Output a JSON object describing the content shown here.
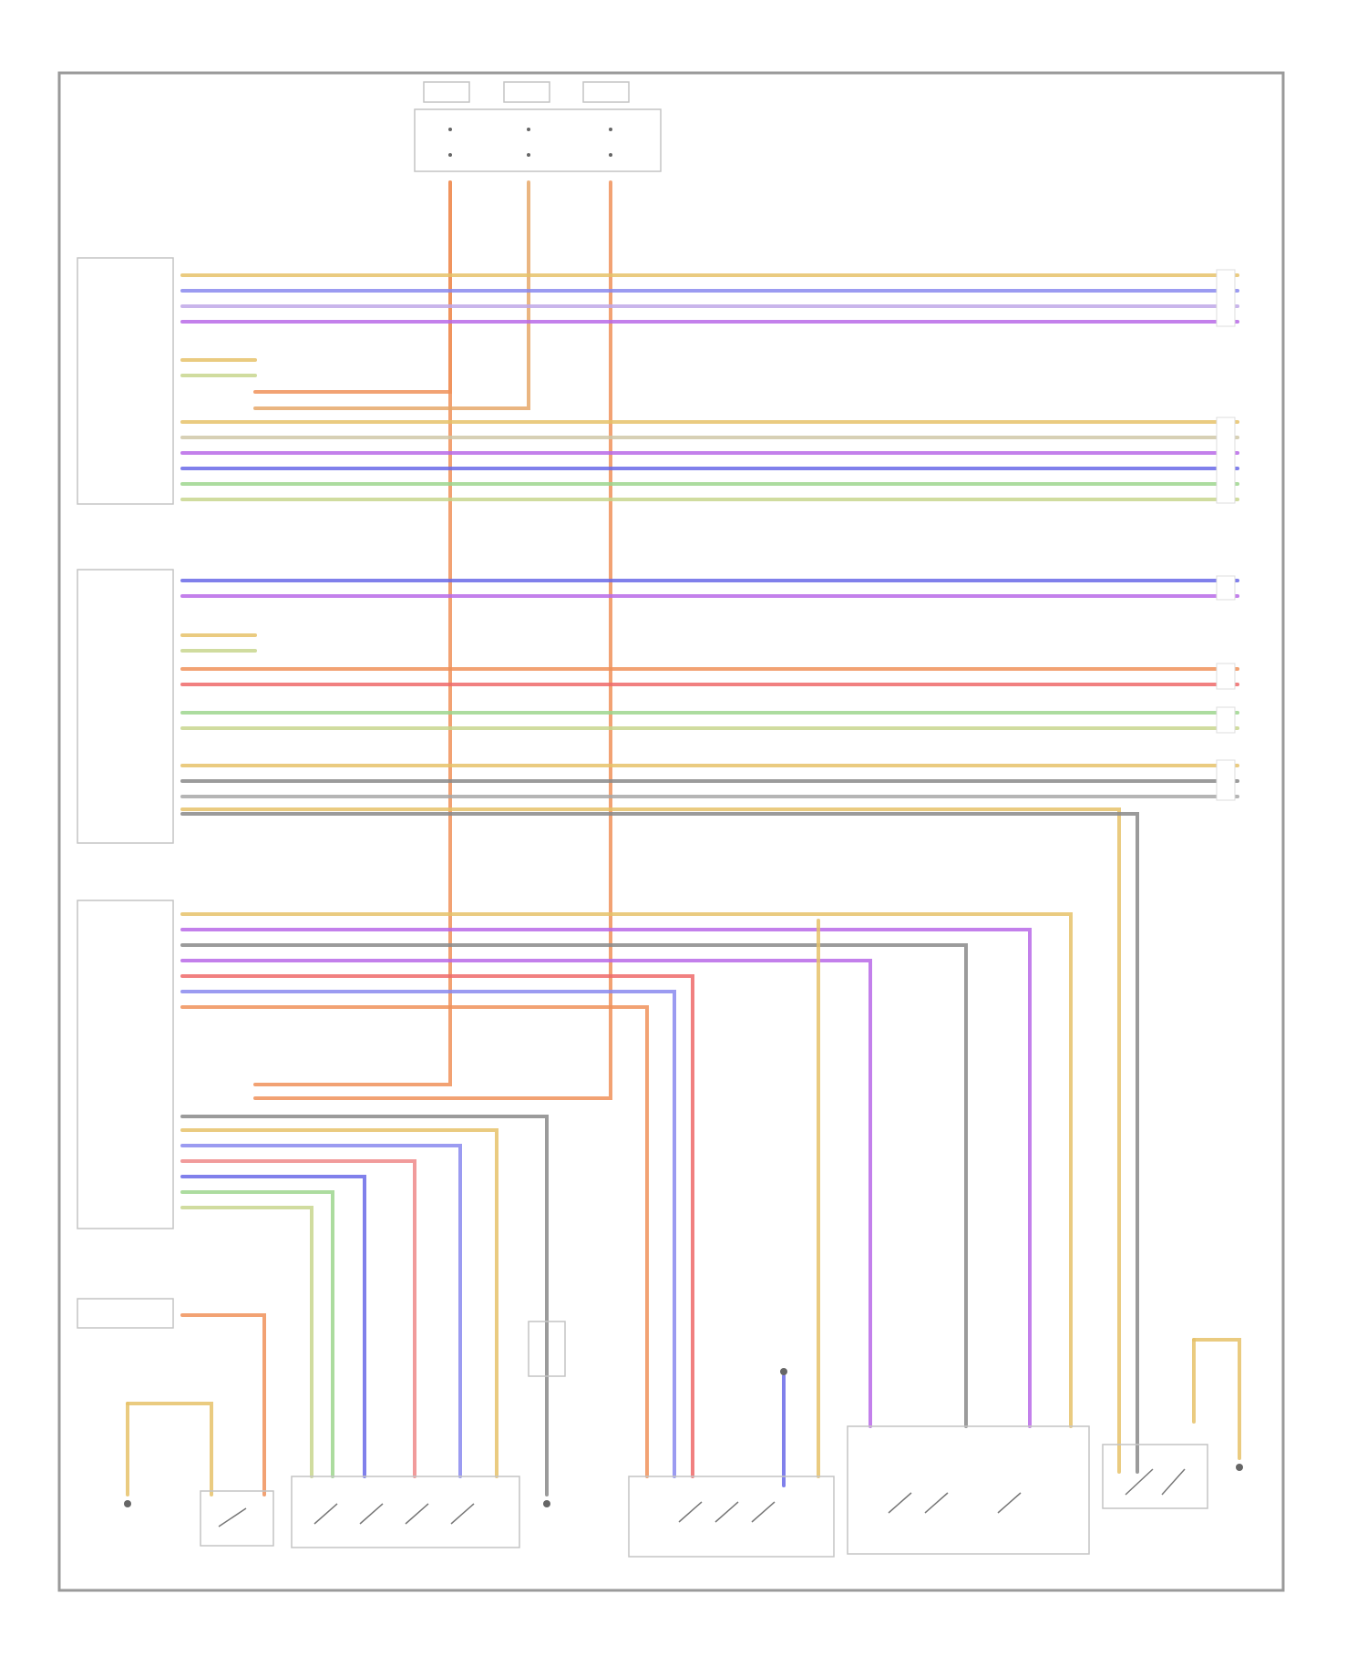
{
  "diagram": {
    "footer_ref": "",
    "components": {
      "fuse_block": "",
      "module_1": "",
      "module_2": "",
      "module_3": "",
      "module_4": "",
      "switch_1": "",
      "switch_2": "",
      "switch_3": "",
      "switch_4": "",
      "switch_5": "",
      "switch_6": "",
      "ground_1": "",
      "ground_2": "",
      "ground_3": "",
      "connector": ""
    },
    "colors": {
      "yellow": "#e6c26a",
      "blue": "#6a6ae8",
      "purple": "#b86ae8",
      "orange": "#f0925a",
      "red": "#ee6a6a",
      "green": "#9ed68e",
      "gray": "#8a8a8a",
      "tan": "#d8b49a"
    }
  }
}
